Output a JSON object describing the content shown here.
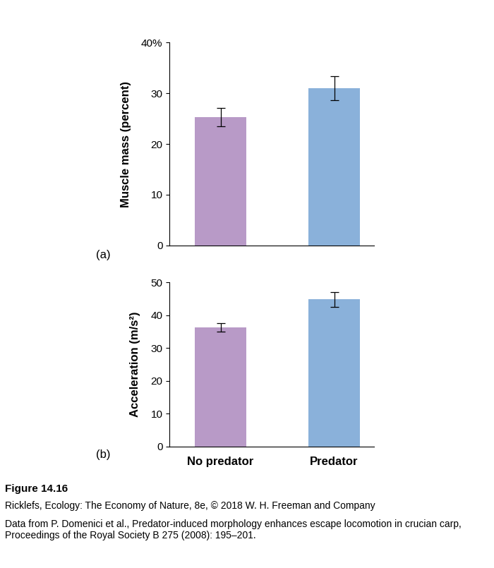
{
  "chart_data": [
    {
      "type": "bar",
      "panel": "(a)",
      "y_label": "Muscle mass (percent)",
      "categories": [
        null,
        null
      ],
      "values": [
        25.3,
        31.0
      ],
      "errors": [
        1.8,
        2.4
      ],
      "colors": [
        "#b89ac7",
        "#8ab1da"
      ],
      "ylim": [
        0,
        40
      ],
      "yticks": [
        0,
        10,
        20,
        30,
        {
          "value": 40,
          "label": "40%"
        }
      ],
      "tick_labels": "y"
    },
    {
      "type": "bar",
      "panel": "(b)",
      "y_label": "Acceleration (m/s²)",
      "categories": [
        "No predator",
        "Predator"
      ],
      "values": [
        36.3,
        44.8
      ],
      "errors": [
        1.3,
        2.3
      ],
      "colors": [
        "#b89ac7",
        "#8ab1da"
      ],
      "ylim": [
        0,
        50
      ],
      "yticks": [
        0,
        10,
        20,
        30,
        40,
        50
      ]
    }
  ],
  "caption": {
    "figure": "Figure 14.16",
    "source": [
      "Ricklefs, Ecology: The Economy of Nature, 8e, © 2018 W. H. Freeman and Company",
      "Data from P. Domenici et al., Predator-induced morphology enhances escape locomotion in crucian carp, Proceedings of the Royal Society B 275 (2008): 195–201."
    ]
  }
}
